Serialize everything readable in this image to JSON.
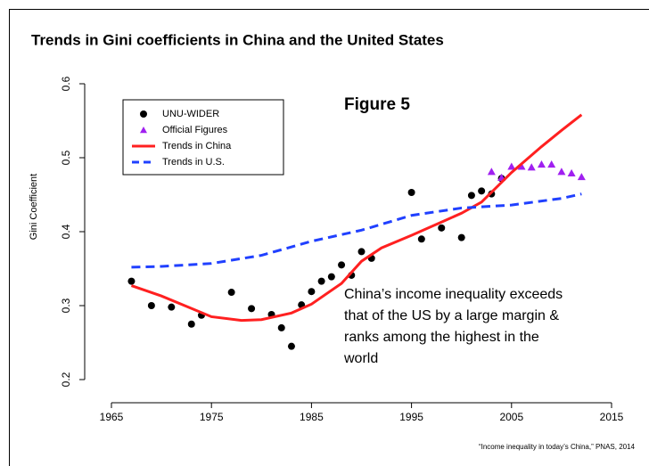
{
  "chart_data": {
    "type": "scatter",
    "title": "Trends in Gini coefficients in China and the United States",
    "figure_label": "Figure 5",
    "y_label": "Gini Coefficient",
    "annotation": [
      "China’s income inequality exceeds",
      "that of the US by a large margin &",
      "ranks among the highest in the",
      "world"
    ],
    "source": "“Income inequality in today’s China,” PNAS, 2014",
    "xlim": [
      1965,
      2015
    ],
    "xticks": [
      1965,
      1975,
      1985,
      1995,
      2005,
      2015
    ],
    "ylim": [
      0.2,
      0.6
    ],
    "yticks": [
      0.2,
      0.3,
      0.4,
      0.5,
      0.6
    ],
    "legend": "top-left",
    "series": [
      {
        "name": "UNU-WIDER",
        "kind": "points",
        "marker": "circle",
        "color": "#000000",
        "x": [
          1967,
          1969,
          1971,
          1973,
          1974,
          1977,
          1979,
          1981,
          1982,
          1983,
          1984,
          1985,
          1986,
          1987,
          1988,
          1989,
          1990,
          1991,
          1995,
          1996,
          1998,
          2000,
          2001,
          2002,
          2003,
          2004
        ],
        "values": [
          0.333,
          0.3,
          0.298,
          0.275,
          0.287,
          0.318,
          0.296,
          0.288,
          0.27,
          0.245,
          0.301,
          0.319,
          0.333,
          0.339,
          0.355,
          0.341,
          0.373,
          0.364,
          0.453,
          0.39,
          0.405,
          0.392,
          0.449,
          0.455,
          0.451,
          0.472
        ]
      },
      {
        "name": "Official Figures",
        "kind": "points",
        "marker": "triangle",
        "color": "#a020f0",
        "x": [
          2003,
          2004,
          2005,
          2006,
          2007,
          2008,
          2009,
          2010,
          2011,
          2012
        ],
        "values": [
          0.481,
          0.473,
          0.488,
          0.488,
          0.487,
          0.491,
          0.491,
          0.481,
          0.479,
          0.474
        ]
      },
      {
        "name": "Trends in China",
        "kind": "line",
        "dash": false,
        "color": "#ff2020",
        "x": [
          1967,
          1970,
          1975,
          1978,
          1980,
          1983,
          1985,
          1988,
          1990,
          1992,
          1995,
          1998,
          2000,
          2002,
          2005,
          2008,
          2010,
          2012
        ],
        "values": [
          0.327,
          0.313,
          0.285,
          0.28,
          0.281,
          0.29,
          0.302,
          0.33,
          0.36,
          0.378,
          0.395,
          0.413,
          0.425,
          0.44,
          0.48,
          0.515,
          0.537,
          0.558
        ]
      },
      {
        "name": "Trends in U.S.",
        "kind": "line",
        "dash": true,
        "color": "#2040ff",
        "x": [
          1967,
          1970,
          1975,
          1980,
          1985,
          1990,
          1995,
          2000,
          2005,
          2010,
          2012
        ],
        "values": [
          0.352,
          0.353,
          0.357,
          0.368,
          0.387,
          0.402,
          0.422,
          0.432,
          0.436,
          0.445,
          0.451
        ]
      }
    ]
  }
}
